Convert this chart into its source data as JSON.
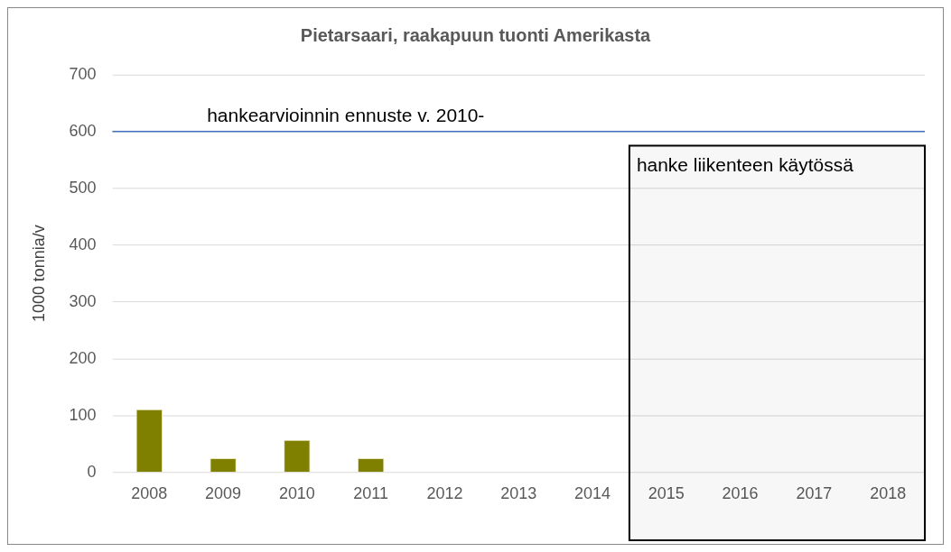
{
  "chart_data": {
    "type": "bar",
    "title": "Pietarsaari, raakapuun tuonti Amerikasta",
    "ylabel": "1000 tonnia/v",
    "categories": [
      "2008",
      "2009",
      "2010",
      "2011",
      "2012",
      "2013",
      "2014",
      "2015",
      "2016",
      "2017",
      "2018"
    ],
    "values": [
      111,
      25,
      57,
      25,
      null,
      null,
      null,
      null,
      null,
      null,
      null
    ],
    "color": "#808000",
    "ylim": [
      0,
      700
    ],
    "yticks": [
      0,
      100,
      200,
      300,
      400,
      500,
      600,
      700
    ],
    "grid": "y",
    "legend": false,
    "ref_lines": [
      {
        "axis": "y",
        "value": 600,
        "label": "hankearvioinnin ennuste v. 2010-",
        "color": "#4472c4"
      }
    ],
    "bands": [
      {
        "axis": "x",
        "from": "2015",
        "to": "2018",
        "label": "hanke liikenteen käytössä",
        "color": "#000000"
      }
    ]
  }
}
